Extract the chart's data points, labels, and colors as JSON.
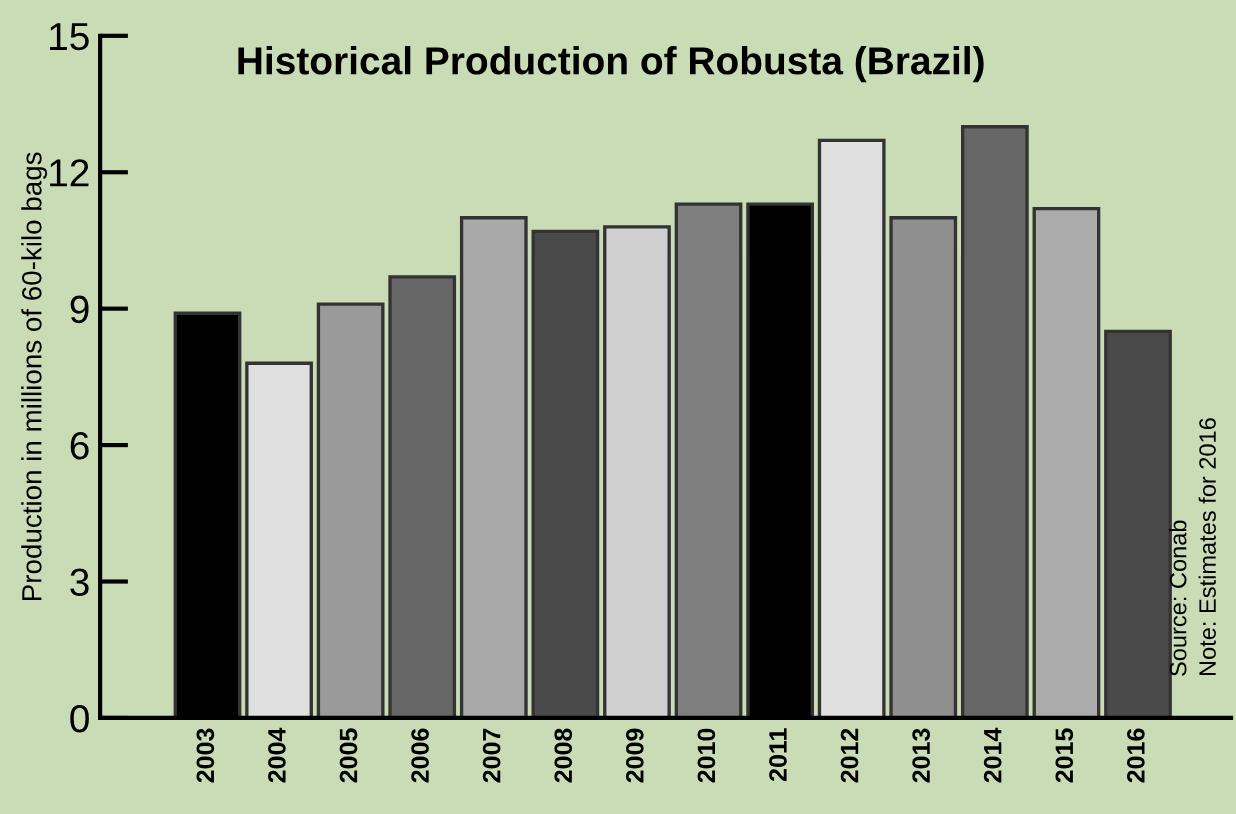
{
  "chart_data": {
    "type": "bar",
    "title": "Historical Production of Robusta (Brazil)",
    "ylabel": "Production in millions of 60-kilo bags",
    "categories": [
      "2003",
      "2004",
      "2005",
      "2006",
      "2007",
      "2008",
      "2009",
      "2010",
      "2011",
      "2012",
      "2013",
      "2014",
      "2015",
      "2016"
    ],
    "values": [
      8.9,
      7.8,
      9.1,
      9.7,
      11.0,
      10.7,
      10.8,
      11.3,
      11.3,
      12.7,
      11.0,
      13.0,
      11.2,
      8.5
    ],
    "colors": [
      "#000000",
      "#e0e0e0",
      "#9a9a9a",
      "#666666",
      "#a9a9a9",
      "#4a4a4a",
      "#cfcfcf",
      "#7f7f7f",
      "#000000",
      "#e0e0e0",
      "#8f8f8f",
      "#666666",
      "#ababab",
      "#4a4a4a"
    ],
    "ylim": [
      0,
      15
    ],
    "yticks": [
      0,
      3,
      6,
      9,
      12,
      15
    ],
    "grid": false,
    "annotations": [
      "Source: Conab",
      "Note: Estimates for 2016"
    ]
  }
}
